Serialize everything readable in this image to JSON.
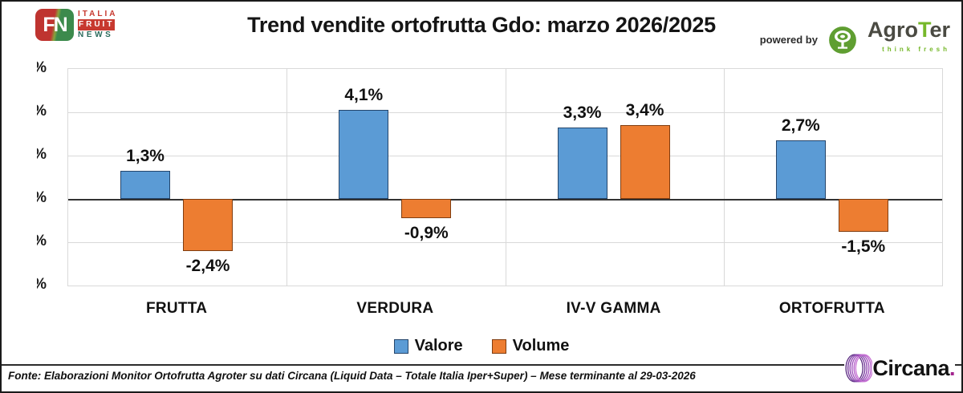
{
  "header": {
    "ifn_logo": {
      "icon_text": "FN",
      "line1": "ITALIA",
      "line2": "FRUIT",
      "line3": "NEWS"
    },
    "agroter": {
      "powered_by": "powered by",
      "brand_agro": "Agro",
      "brand_t": "T",
      "brand_er": "er",
      "tagline": "think fresh"
    }
  },
  "chart_data": {
    "type": "bar",
    "title": "Trend vendite ortofrutta Gdo: marzo 2026/2025",
    "categories": [
      "FRUTTA",
      "VERDURA",
      "IV-V GAMMA",
      "ORTOFRUTTA"
    ],
    "series": [
      {
        "name": "Valore",
        "color": "#5B9BD5",
        "border_color": "#24456B",
        "values": [
          1.3,
          4.1,
          3.3,
          2.7
        ],
        "labels": [
          "1,3%",
          "4,1%",
          "3,3%",
          "2,7%"
        ]
      },
      {
        "name": "Volume",
        "color": "#ED7D31",
        "border_color": "#803D10",
        "values": [
          -2.4,
          -0.9,
          3.4,
          -1.5
        ],
        "labels": [
          "-2,4%",
          "-0,9%",
          "3,4%",
          "-1,5%"
        ]
      }
    ],
    "ylim": [
      -4,
      6
    ],
    "grid_step": 2,
    "grid": true,
    "y_ticks": [
      "%",
      "%",
      "%",
      "%",
      "%",
      "%"
    ],
    "legend_position": "bottom"
  },
  "footer": {
    "source": "Fonte: Elaborazioni Monitor Ortofrutta Agroter su dati Circana (Liquid Data – Totale Italia Iper+Super) – Mese terminante al 29-03-2026",
    "circana_brand": "Circana",
    "circana_dot": "."
  }
}
